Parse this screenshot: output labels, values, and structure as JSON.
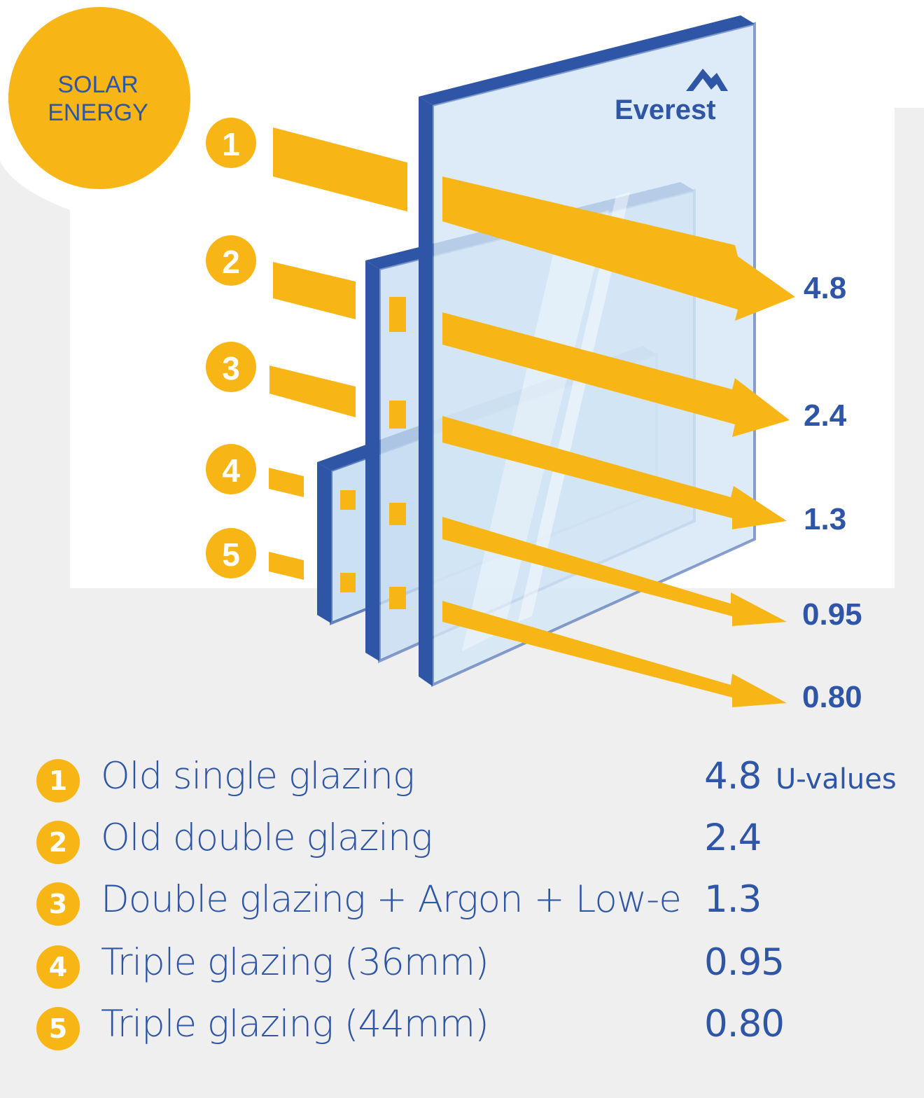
{
  "badge": {
    "line1": "SOLAR",
    "line2": "ENERGY"
  },
  "logo": {
    "text": "Everest",
    "icon": "mountain-icon"
  },
  "colors": {
    "accent": "#f8b516",
    "glass_frame": "#2f56a6",
    "glass_fill": "#cfe3f5",
    "text": "#2f56a6",
    "background": "#efefef"
  },
  "arrows": [
    {
      "num": "1",
      "value": "4.8"
    },
    {
      "num": "2",
      "value": "2.4"
    },
    {
      "num": "3",
      "value": "1.3"
    },
    {
      "num": "4",
      "value": "0.95"
    },
    {
      "num": "5",
      "value": "0.80"
    }
  ],
  "legend": {
    "unit": "U-values",
    "rows": [
      {
        "num": "1",
        "label": "Old single glazing",
        "value": "4.8"
      },
      {
        "num": "2",
        "label": "Old double glazing",
        "value": "2.4"
      },
      {
        "num": "3",
        "label": "Double glazing + Argon + Low-e",
        "value": "1.3"
      },
      {
        "num": "4",
        "label": "Triple glazing (36mm)",
        "value": "0.95"
      },
      {
        "num": "5",
        "label": "Triple glazing (44mm)",
        "value": "0.80"
      }
    ]
  }
}
